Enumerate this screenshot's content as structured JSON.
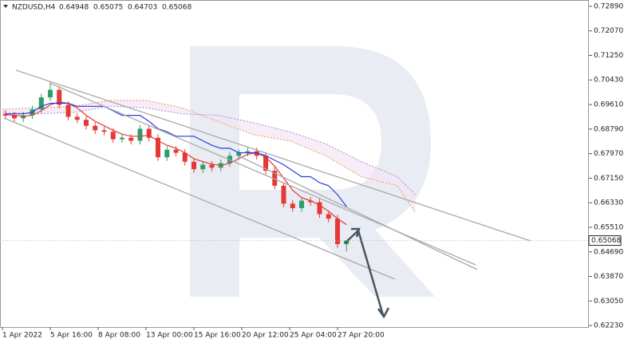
{
  "chart_data": {
    "type": "candlestick",
    "title": "NZDUSD,H4",
    "x": [
      1,
      4,
      7,
      10,
      13,
      16,
      19,
      22,
      25,
      28,
      31,
      34,
      37,
      40,
      43,
      46,
      49,
      52,
      55,
      58,
      61,
      64,
      67,
      70,
      73,
      76,
      79,
      82,
      85,
      88,
      91,
      94,
      97,
      100,
      103,
      106,
      109,
      112,
      115
    ],
    "open": [
      0.693,
      0.6924,
      0.6915,
      0.6925,
      0.6945,
      0.6985,
      0.701,
      0.696,
      0.692,
      0.691,
      0.689,
      0.6875,
      0.687,
      0.6845,
      0.685,
      0.684,
      0.688,
      0.685,
      0.6785,
      0.681,
      0.68,
      0.677,
      0.6745,
      0.676,
      0.675,
      0.6765,
      0.679,
      0.68,
      0.6805,
      0.679,
      0.674,
      0.669,
      0.663,
      0.6615,
      0.664,
      0.6635,
      0.6595,
      0.658,
      0.64948
    ],
    "high": [
      0.6942,
      0.6936,
      0.6937,
      0.6957,
      0.6997,
      0.7035,
      0.7022,
      0.6972,
      0.6932,
      0.6922,
      0.6902,
      0.6887,
      0.6882,
      0.6862,
      0.6862,
      0.6892,
      0.6892,
      0.6862,
      0.6822,
      0.6822,
      0.6812,
      0.6782,
      0.6772,
      0.6772,
      0.6777,
      0.6802,
      0.6812,
      0.6817,
      0.6817,
      0.6802,
      0.6752,
      0.6702,
      0.6642,
      0.6652,
      0.6652,
      0.6647,
      0.6607,
      0.6592,
      0.65075
    ],
    "low": [
      0.6912,
      0.6903,
      0.6903,
      0.6913,
      0.6933,
      0.6973,
      0.6948,
      0.6908,
      0.6898,
      0.6878,
      0.6863,
      0.6858,
      0.6833,
      0.6833,
      0.6828,
      0.6828,
      0.6838,
      0.6773,
      0.6773,
      0.6788,
      0.6758,
      0.6733,
      0.6733,
      0.6738,
      0.6738,
      0.6753,
      0.6778,
      0.6788,
      0.6778,
      0.6728,
      0.6678,
      0.6618,
      0.6603,
      0.6603,
      0.6623,
      0.6583,
      0.6568,
      0.6483,
      0.64703
    ],
    "close": [
      0.6924,
      0.6915,
      0.6925,
      0.6945,
      0.6985,
      0.701,
      0.696,
      0.692,
      0.691,
      0.689,
      0.6875,
      0.687,
      0.6845,
      0.685,
      0.684,
      0.688,
      0.685,
      0.6785,
      0.681,
      0.68,
      0.677,
      0.6745,
      0.676,
      0.675,
      0.6765,
      0.679,
      0.68,
      0.6805,
      0.679,
      0.674,
      0.669,
      0.663,
      0.6615,
      0.664,
      0.6635,
      0.6595,
      0.658,
      0.64948,
      0.65068
    ],
    "up_color": "#2e9e6a",
    "down_color": "#e53935",
    "lines": [
      {
        "color": "#e53935",
        "values": [
          0.6928,
          0.6925,
          0.6922,
          0.6925,
          0.694,
          0.696,
          0.697,
          0.6965,
          0.695,
          0.6925,
          0.6905,
          0.689,
          0.6875,
          0.6862,
          0.6855,
          0.6855,
          0.6858,
          0.684,
          0.6825,
          0.6815,
          0.68,
          0.678,
          0.677,
          0.6762,
          0.6758,
          0.6765,
          0.678,
          0.6795,
          0.68,
          0.6785,
          0.6755,
          0.6715,
          0.6675,
          0.665,
          0.664,
          0.6625,
          0.6605,
          0.658,
          0.656
        ]
      },
      {
        "color": "#2a3de0",
        "values": [
          0.693,
          0.693,
          0.693,
          0.6935,
          0.6955,
          0.6965,
          0.6965,
          0.6965,
          0.6955,
          0.6955,
          0.6955,
          0.6955,
          0.694,
          0.6925,
          0.6925,
          0.6925,
          0.6905,
          0.688,
          0.687,
          0.6855,
          0.6855,
          0.6855,
          0.684,
          0.6825,
          0.6815,
          0.6815,
          0.68,
          0.68,
          0.68,
          0.679,
          0.6775,
          0.676,
          0.674,
          0.672,
          0.672,
          0.67,
          0.669,
          0.666,
          0.662
        ]
      }
    ],
    "cloud": {
      "x": [
        0,
        12,
        24,
        36,
        48,
        60,
        72,
        84,
        96,
        108,
        120,
        132,
        138
      ],
      "span_a": {
        "color": "#f0a070",
        "values": [
          0.6945,
          0.695,
          0.6955,
          0.6975,
          0.6975,
          0.695,
          0.6905,
          0.686,
          0.684,
          0.679,
          0.672,
          0.669,
          0.66
        ]
      },
      "span_b": {
        "color": "#b49ad8",
        "values": [
          0.6935,
          0.693,
          0.6935,
          0.6955,
          0.695,
          0.693,
          0.6925,
          0.69,
          0.687,
          0.683,
          0.677,
          0.672,
          0.666
        ]
      }
    },
    "xlim": [
      -0.8,
      196
    ],
    "xticks": [
      {
        "value": 0,
        "label": "1 Apr 2022"
      },
      {
        "value": 16,
        "label": "5 Apr 16:00"
      },
      {
        "value": 32,
        "label": "8 Apr 08:00"
      },
      {
        "value": 48,
        "label": "13 Apr 00:00"
      },
      {
        "value": 64,
        "label": "15 Apr 16:00"
      },
      {
        "value": 80,
        "label": "20 Apr 12:00"
      },
      {
        "value": 96,
        "label": "25 Apr 04:00"
      },
      {
        "value": 112,
        "label": "27 Apr 20:00"
      }
    ],
    "ylim": [
      0.6218,
      0.731
    ],
    "yticks": [
      {
        "value": 0.7289,
        "label": "0.72890"
      },
      {
        "value": 0.7207,
        "label": "0.72070"
      },
      {
        "value": 0.7125,
        "label": "0.71250"
      },
      {
        "value": 0.7043,
        "label": "0.70430"
      },
      {
        "value": 0.6961,
        "label": "0.69610"
      },
      {
        "value": 0.6879,
        "label": "0.68790"
      },
      {
        "value": 0.6797,
        "label": "0.67970"
      },
      {
        "value": 0.6715,
        "label": "0.67150"
      },
      {
        "value": 0.6633,
        "label": "0.66330"
      },
      {
        "value": 0.6551,
        "label": "0.65510"
      },
      {
        "value": 0.6469,
        "label": "0.64690"
      },
      {
        "value": 0.6387,
        "label": "0.63870"
      },
      {
        "value": 0.6305,
        "label": "0.63050"
      },
      {
        "value": 0.6223,
        "label": "0.62230"
      }
    ]
  }
}
